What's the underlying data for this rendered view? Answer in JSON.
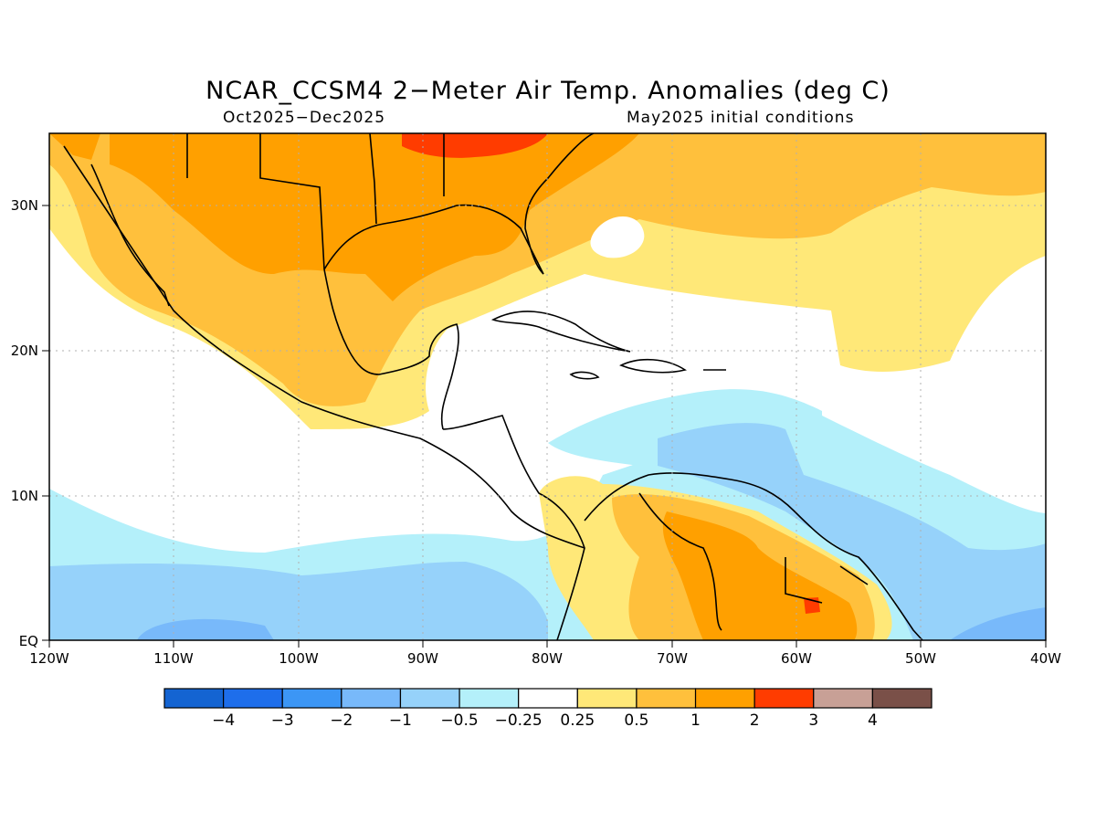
{
  "title": "NCAR_CCSM4 2−Meter Air Temp. Anomalies (deg C)",
  "subtitle_left": "Oct2025−Dec2025",
  "subtitle_right": "May2025 initial conditions",
  "axes": {
    "lon_labels": [
      "120W",
      "110W",
      "100W",
      "90W",
      "80W",
      "70W",
      "60W",
      "50W",
      "40W"
    ],
    "lat_labels": [
      "30N",
      "20N",
      "10N",
      "EQ"
    ]
  },
  "colorbar": {
    "colors": [
      "#1464d2",
      "#1e6eeb",
      "#3c96f5",
      "#78b9fa",
      "#96d2fa",
      "#b4f0fa",
      "#ffffff",
      "#ffe878",
      "#ffc03c",
      "#ffa000",
      "#ff3c00",
      "#c8a096",
      "#7a5048"
    ],
    "labels": [
      "−4",
      "−3",
      "−2",
      "−1",
      "−0.5",
      "−0.25",
      "0.25",
      "0.5",
      "1",
      "2",
      "3",
      "4"
    ]
  },
  "palette": {
    "neg_025": "#b4f0fa",
    "neg_05": "#96d2fa",
    "neg_1": "#78b9fa",
    "pos_025": "#ffe878",
    "pos_05": "#ffc03c",
    "pos_1": "#ffa000",
    "pos_2": "#ff3c00"
  }
}
